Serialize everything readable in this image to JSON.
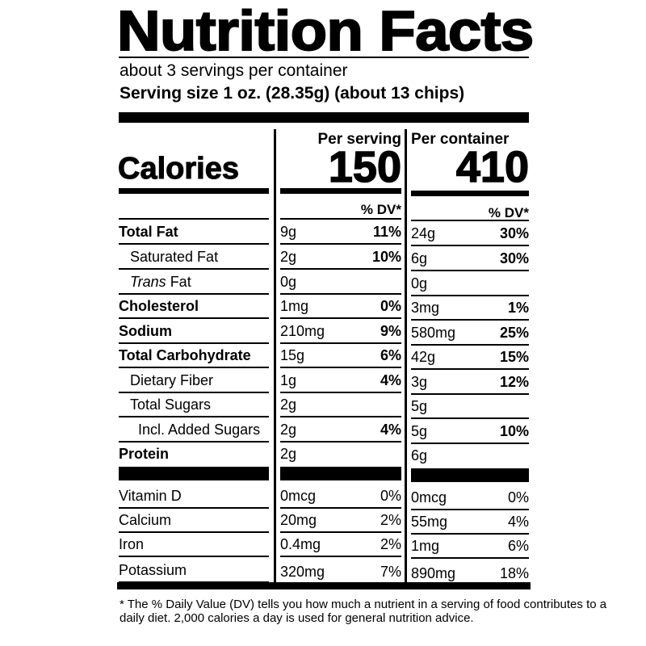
{
  "title": "Nutrition Facts",
  "servings_per_container": "about 3 servings per container",
  "serving_size": "Serving size  1 oz. (28.35g) (about 13 chips)",
  "columns": {
    "per_serving": "Per serving",
    "per_container": "Per container",
    "dv_header": "% DV*"
  },
  "calories": {
    "label": "Calories",
    "per_serving": "150",
    "per_container": "410"
  },
  "nutrients": [
    {
      "name": "Total Fat",
      "style": "bold",
      "indent": 0,
      "serving_amount": "9g",
      "serving_dv": "11%",
      "container_amount": "24g",
      "container_dv": "30%"
    },
    {
      "name": "Saturated Fat",
      "style": "normal",
      "indent": 1,
      "serving_amount": "2g",
      "serving_dv": "10%",
      "container_amount": "6g",
      "container_dv": "30%"
    },
    {
      "name_italic": "Trans",
      "name": " Fat",
      "style": "normal",
      "indent": 1,
      "serving_amount": "0g",
      "serving_dv": "",
      "container_amount": "0g",
      "container_dv": ""
    },
    {
      "name": "Cholesterol",
      "style": "bold",
      "indent": 0,
      "serving_amount": "1mg",
      "serving_dv": "0%",
      "container_amount": "3mg",
      "container_dv": "1%"
    },
    {
      "name": "Sodium",
      "style": "bold",
      "indent": 0,
      "serving_amount": "210mg",
      "serving_dv": "9%",
      "container_amount": "580mg",
      "container_dv": "25%"
    },
    {
      "name": "Total Carbohydrate",
      "style": "bold",
      "indent": 0,
      "serving_amount": "15g",
      "serving_dv": "6%",
      "container_amount": "42g",
      "container_dv": "15%"
    },
    {
      "name": "Dietary Fiber",
      "style": "normal",
      "indent": 1,
      "serving_amount": "1g",
      "serving_dv": "4%",
      "container_amount": "3g",
      "container_dv": "12%"
    },
    {
      "name": "Total Sugars",
      "style": "normal",
      "indent": 1,
      "serving_amount": "2g",
      "serving_dv": "",
      "container_amount": "5g",
      "container_dv": ""
    },
    {
      "name": "Incl. Added Sugars",
      "style": "normal",
      "indent": 2,
      "serving_amount": "2g",
      "serving_dv": "4%",
      "container_amount": "5g",
      "container_dv": "10%"
    },
    {
      "name": "Protein",
      "style": "bold",
      "indent": 0,
      "serving_amount": "2g",
      "serving_dv": "",
      "container_amount": "6g",
      "container_dv": ""
    }
  ],
  "vitamins": [
    {
      "name": "Vitamin D",
      "serving_amount": "0mcg",
      "serving_dv": "0%",
      "container_amount": "0mcg",
      "container_dv": "0%"
    },
    {
      "name": "Calcium",
      "serving_amount": "20mg",
      "serving_dv": "2%",
      "container_amount": "55mg",
      "container_dv": "4%"
    },
    {
      "name": "Iron",
      "serving_amount": "0.4mg",
      "serving_dv": "2%",
      "container_amount": "1mg",
      "container_dv": "6%"
    },
    {
      "name": "Potassium",
      "serving_amount": "320mg",
      "serving_dv": "7%",
      "container_amount": "890mg",
      "container_dv": "18%"
    }
  ],
  "footnote": "* The % Daily Value (DV) tells you how much a nutrient in a serving of food contributes to a daily diet. 2,000 calories a day is used for general nutrition advice."
}
